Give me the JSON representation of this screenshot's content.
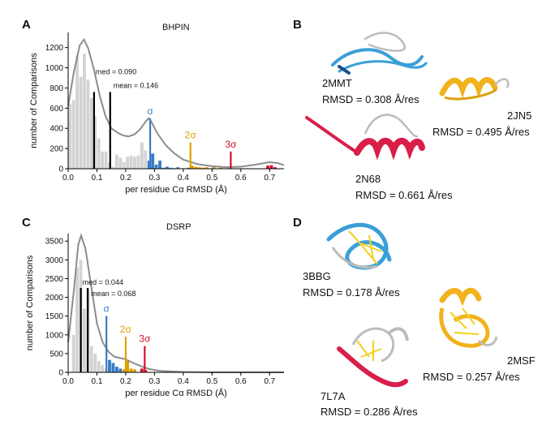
{
  "figure": {
    "panels": {
      "a": {
        "label": "A",
        "title": "BHPIN"
      },
      "b": {
        "label": "B"
      },
      "c": {
        "label": "C",
        "title": "DSRP"
      },
      "d": {
        "label": "D"
      }
    },
    "structures": {
      "b": [
        {
          "name": "2MMT",
          "rmsd": "RMSD =  0.308 Å/res",
          "colors": [
            "#3a9fd8",
            "#1d4e89",
            "#bcbcbc"
          ]
        },
        {
          "name": "2JN5",
          "rmsd": "RMSD =  0.495 Å/res",
          "colors": [
            "#f2b21c",
            "#d9a010",
            "#bcbcbc"
          ]
        },
        {
          "name": "2N68",
          "rmsd": "RMSD =  0.661 Å/res",
          "colors": [
            "#d91e4a",
            "#e8426a",
            "#bcbcbc"
          ]
        }
      ],
      "d": [
        {
          "name": "3BBG",
          "rmsd": "RMSD =  0.178 Å/res",
          "colors": [
            "#3a9fd8",
            "#f2d21c",
            "#bcbcbc"
          ]
        },
        {
          "name": "2MSF",
          "rmsd": "RMSD =  0.257 Å/res",
          "colors": [
            "#f2b21c",
            "#f2d21c",
            "#bcbcbc"
          ]
        },
        {
          "name": "7L7A",
          "rmsd": "RMSD =  0.286 Å/res",
          "colors": [
            "#d91e4a",
            "#f2d21c",
            "#bcbcbc"
          ]
        }
      ]
    }
  },
  "chart_data": [
    {
      "type": "bar",
      "title": "BHPIN",
      "xlabel": "per residue Cα RMSD (Å)",
      "ylabel": "number of Comparisons",
      "xlim": [
        0,
        0.75
      ],
      "ylim": [
        0,
        1350
      ],
      "xticks": [
        "0.0",
        "0.1",
        "0.2",
        "0.3",
        "0.4",
        "0.5",
        "0.6",
        "0.7"
      ],
      "yticks": [
        "0",
        "200",
        "400",
        "600",
        "800",
        "1000",
        "1200"
      ],
      "bin_width": 0.0125,
      "bins": [
        [
          0.0,
          640,
          "gray"
        ],
        [
          0.0125,
          680,
          "gray"
        ],
        [
          0.025,
          1120,
          "gray"
        ],
        [
          0.0375,
          910,
          "gray"
        ],
        [
          0.05,
          1140,
          "gray"
        ],
        [
          0.0625,
          880,
          "gray"
        ],
        [
          0.075,
          700,
          "gray"
        ],
        [
          0.0875,
          520,
          "gray"
        ],
        [
          0.1,
          300,
          "gray"
        ],
        [
          0.1125,
          170,
          "gray"
        ],
        [
          0.125,
          170,
          "gray"
        ],
        [
          0.1375,
          60,
          "gray"
        ],
        [
          0.15,
          20,
          "gray"
        ],
        [
          0.1625,
          140,
          "gray"
        ],
        [
          0.175,
          110,
          "gray"
        ],
        [
          0.1875,
          65,
          "gray"
        ],
        [
          0.2,
          120,
          "gray"
        ],
        [
          0.2125,
          130,
          "gray"
        ],
        [
          0.225,
          120,
          "gray"
        ],
        [
          0.2375,
          130,
          "gray"
        ],
        [
          0.25,
          260,
          "gray"
        ],
        [
          0.2625,
          180,
          "gray"
        ],
        [
          0.275,
          80,
          "blue"
        ],
        [
          0.2875,
          150,
          "blue"
        ],
        [
          0.3,
          40,
          "blue"
        ],
        [
          0.3125,
          80,
          "blue"
        ],
        [
          0.325,
          10,
          "blue"
        ],
        [
          0.3375,
          20,
          "blue"
        ],
        [
          0.35,
          10,
          "blue"
        ],
        [
          0.3625,
          5,
          "blue"
        ],
        [
          0.375,
          15,
          "blue"
        ],
        [
          0.4125,
          10,
          "blue"
        ],
        [
          0.425,
          30,
          "gold"
        ],
        [
          0.4375,
          20,
          "gold"
        ],
        [
          0.45,
          15,
          "gold"
        ],
        [
          0.4625,
          10,
          "gold"
        ],
        [
          0.475,
          15,
          "gold"
        ],
        [
          0.5,
          30,
          "gold"
        ],
        [
          0.525,
          10,
          "gold"
        ],
        [
          0.55,
          5,
          "gold"
        ],
        [
          0.6875,
          30,
          "red"
        ],
        [
          0.7,
          35,
          "red"
        ],
        [
          0.7125,
          15,
          "red"
        ]
      ],
      "kde": [
        [
          0.0,
          620
        ],
        [
          0.02,
          960
        ],
        [
          0.04,
          1220
        ],
        [
          0.055,
          1280
        ],
        [
          0.07,
          1190
        ],
        [
          0.09,
          980
        ],
        [
          0.11,
          720
        ],
        [
          0.13,
          520
        ],
        [
          0.15,
          400
        ],
        [
          0.17,
          360
        ],
        [
          0.19,
          330
        ],
        [
          0.21,
          320
        ],
        [
          0.23,
          340
        ],
        [
          0.25,
          390
        ],
        [
          0.27,
          470
        ],
        [
          0.28,
          500
        ],
        [
          0.29,
          460
        ],
        [
          0.31,
          350
        ],
        [
          0.34,
          230
        ],
        [
          0.37,
          150
        ],
        [
          0.4,
          90
        ],
        [
          0.45,
          45
        ],
        [
          0.5,
          25
        ],
        [
          0.55,
          15
        ],
        [
          0.6,
          20
        ],
        [
          0.65,
          40
        ],
        [
          0.7,
          65
        ],
        [
          0.73,
          55
        ],
        [
          0.75,
          35
        ]
      ],
      "vlines": [
        {
          "x": 0.09,
          "height": 760,
          "color": "#000000",
          "label": "med = 0.090"
        },
        {
          "x": 0.146,
          "height": 760,
          "color": "#000000",
          "label": "mean = 0.146"
        },
        {
          "x": 0.285,
          "height": 500,
          "color": "#3a7cc4",
          "label": "σ"
        },
        {
          "x": 0.425,
          "height": 260,
          "color": "#e0a000",
          "label": "2σ"
        },
        {
          "x": 0.565,
          "height": 170,
          "color": "#d0112b",
          "label": "3σ"
        }
      ]
    },
    {
      "type": "bar",
      "title": "DSRP",
      "xlabel": "per residue Cα RMSD (Å)",
      "ylabel": "number of Comparisons",
      "xlim": [
        0,
        0.75
      ],
      "ylim": [
        0,
        3700
      ],
      "xticks": [
        "0.0",
        "0.1",
        "0.2",
        "0.3",
        "0.4",
        "0.5",
        "0.6",
        "0.7"
      ],
      "yticks": [
        "0",
        "500",
        "1000",
        "1500",
        "2000",
        "2500",
        "3000",
        "3500"
      ],
      "bin_width": 0.0125,
      "bins": [
        [
          0.0125,
          1000,
          "gray"
        ],
        [
          0.025,
          2800,
          "gray"
        ],
        [
          0.0375,
          3000,
          "gray"
        ],
        [
          0.05,
          1700,
          "gray"
        ],
        [
          0.0625,
          2200,
          "gray"
        ],
        [
          0.075,
          700,
          "gray"
        ],
        [
          0.0875,
          500,
          "gray"
        ],
        [
          0.1,
          300,
          "gray"
        ],
        [
          0.1125,
          200,
          "gray"
        ],
        [
          0.125,
          100,
          "gray"
        ],
        [
          0.1375,
          330,
          "blue"
        ],
        [
          0.15,
          250,
          "blue"
        ],
        [
          0.1625,
          150,
          "blue"
        ],
        [
          0.175,
          100,
          "blue"
        ],
        [
          0.1875,
          80,
          "gold"
        ],
        [
          0.2,
          300,
          "gold"
        ],
        [
          0.2125,
          100,
          "gold"
        ],
        [
          0.225,
          80,
          "gold"
        ],
        [
          0.25,
          100,
          "red"
        ],
        [
          0.2625,
          60,
          "red"
        ]
      ],
      "kde": [
        [
          0.0,
          800
        ],
        [
          0.02,
          2200
        ],
        [
          0.035,
          3400
        ],
        [
          0.045,
          3650
        ],
        [
          0.06,
          3300
        ],
        [
          0.08,
          2300
        ],
        [
          0.1,
          1300
        ],
        [
          0.12,
          800
        ],
        [
          0.14,
          550
        ],
        [
          0.16,
          420
        ],
        [
          0.18,
          380
        ],
        [
          0.2,
          350
        ],
        [
          0.22,
          270
        ],
        [
          0.25,
          170
        ],
        [
          0.28,
          90
        ],
        [
          0.32,
          40
        ],
        [
          0.4,
          10
        ],
        [
          0.5,
          0
        ],
        [
          0.75,
          0
        ]
      ],
      "vlines": [
        {
          "x": 0.044,
          "height": 2250,
          "color": "#000000",
          "label": "med = 0.044"
        },
        {
          "x": 0.068,
          "height": 2250,
          "color": "#000000",
          "label": "mean = 0.068"
        },
        {
          "x": 0.133,
          "height": 1500,
          "color": "#3a7cc4",
          "label": "σ"
        },
        {
          "x": 0.2,
          "height": 950,
          "color": "#e0a000",
          "label": "2σ"
        },
        {
          "x": 0.266,
          "height": 700,
          "color": "#d0112b",
          "label": "3σ"
        }
      ]
    }
  ],
  "colors": {
    "gray": "#d3d3d3",
    "blue": "#3a7cc4",
    "gold": "#e0a000",
    "red": "#d0112b",
    "kde": "#8c8c8c"
  }
}
